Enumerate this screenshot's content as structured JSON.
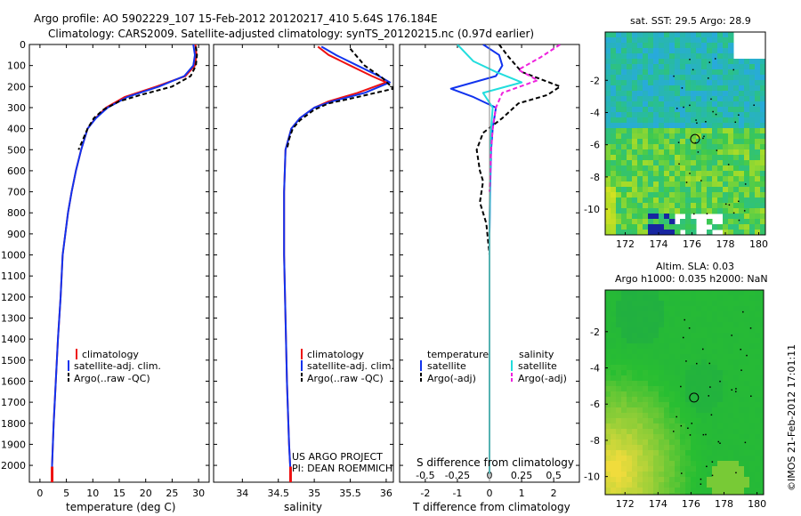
{
  "header": {
    "line1": "Argo profile: AO 5902229_107 15-Feb-2012 20120217_410 5.64S 176.184E",
    "line2": "Climatology: CARS2009. Satellite-adjusted climatology: synTS_20120215.nc (0.97d earlier)"
  },
  "colors": {
    "climatology": "#ee1111",
    "satellite": "#1133ee",
    "argo": "#000000",
    "sal_satellite": "#22dddd",
    "sal_argo": "#ee22dd"
  },
  "chart_data": [
    {
      "type": "line",
      "id": "temperature",
      "xlabel": "temperature (deg C)",
      "ylabel": "",
      "xlim": [
        -2,
        32
      ],
      "ylim": [
        2080,
        0
      ],
      "xticks": [
        0,
        5,
        10,
        15,
        20,
        25,
        30
      ],
      "yticks": [
        0,
        100,
        200,
        300,
        400,
        500,
        600,
        700,
        800,
        900,
        1000,
        1100,
        1200,
        1300,
        1400,
        1500,
        1600,
        1700,
        1800,
        1900,
        2000
      ],
      "legend": [
        "climatology",
        "satellite-adj. clim.",
        "Argo(..raw -QC)"
      ],
      "series": [
        {
          "name": "climatology",
          "color": "#ee1111",
          "dash": "",
          "points": [
            [
              29.4,
              0
            ],
            [
              29.6,
              50
            ],
            [
              29.3,
              100
            ],
            [
              27.5,
              150
            ],
            [
              22,
              200
            ],
            [
              16,
              250
            ],
            [
              12.5,
              300
            ],
            [
              10.5,
              350
            ],
            [
              9,
              400
            ],
            [
              7.8,
              500
            ],
            [
              6.8,
              600
            ],
            [
              6,
              700
            ],
            [
              5.3,
              800
            ],
            [
              4.8,
              900
            ],
            [
              4.3,
              1000
            ],
            [
              3.9,
              1200
            ],
            [
              3.4,
              1400
            ],
            [
              3.0,
              1600
            ],
            [
              2.6,
              1800
            ],
            [
              2.3,
              2000
            ],
            [
              2.3,
              2040
            ]
          ]
        },
        {
          "name": "satellite-adj. clim.",
          "color": "#1133ee",
          "dash": "",
          "points": [
            [
              29.0,
              0
            ],
            [
              29.3,
              50
            ],
            [
              29.0,
              100
            ],
            [
              27.3,
              150
            ],
            [
              22.5,
              200
            ],
            [
              16.5,
              250
            ],
            [
              12.8,
              300
            ],
            [
              10.6,
              350
            ],
            [
              9,
              400
            ],
            [
              7.8,
              500
            ],
            [
              6.8,
              600
            ],
            [
              6,
              700
            ],
            [
              5.3,
              800
            ],
            [
              4.8,
              900
            ],
            [
              4.3,
              1000
            ],
            [
              3.9,
              1200
            ],
            [
              3.4,
              1400
            ],
            [
              3.0,
              1600
            ],
            [
              2.6,
              1800
            ],
            [
              2.3,
              2000
            ],
            [
              2.3,
              2040
            ]
          ]
        },
        {
          "name": "Argo(..raw -QC)",
          "color": "#000000",
          "dash": "5,3",
          "points": [
            [
              29.5,
              10
            ],
            [
              29.7,
              50
            ],
            [
              29.5,
              100
            ],
            [
              28.5,
              150
            ],
            [
              25,
              200
            ],
            [
              19,
              240
            ],
            [
              15,
              270
            ],
            [
              12,
              310
            ],
            [
              10.2,
              350
            ],
            [
              9,
              400
            ],
            [
              8,
              460
            ],
            [
              7.3,
              500
            ]
          ]
        }
      ]
    },
    {
      "type": "line",
      "id": "salinity",
      "xlabel": "salinity",
      "ylabel": "",
      "xlim": [
        33.6,
        36.1
      ],
      "ylim": [
        2080,
        0
      ],
      "xticks": [
        34,
        34.5,
        35,
        35.5,
        36
      ],
      "legend": [
        "climatology",
        "satellite-adj. clim.",
        "Argo(..raw -QC)"
      ],
      "series": [
        {
          "name": "climatology",
          "color": "#ee1111",
          "dash": "",
          "points": [
            [
              35.05,
              10
            ],
            [
              35.2,
              50
            ],
            [
              35.5,
              100
            ],
            [
              35.8,
              150
            ],
            [
              36.0,
              180
            ],
            [
              35.6,
              230
            ],
            [
              35.2,
              270
            ],
            [
              35.0,
              300
            ],
            [
              34.8,
              350
            ],
            [
              34.68,
              400
            ],
            [
              34.6,
              500
            ],
            [
              34.58,
              700
            ],
            [
              34.58,
              1000
            ],
            [
              34.6,
              1300
            ],
            [
              34.62,
              1600
            ],
            [
              34.65,
              1900
            ],
            [
              34.67,
              2040
            ]
          ]
        },
        {
          "name": "satellite-adj. clim.",
          "color": "#1133ee",
          "dash": "",
          "points": [
            [
              35.1,
              10
            ],
            [
              35.3,
              50
            ],
            [
              35.6,
              100
            ],
            [
              35.9,
              150
            ],
            [
              36.05,
              180
            ],
            [
              35.7,
              230
            ],
            [
              35.25,
              270
            ],
            [
              35.0,
              300
            ],
            [
              34.8,
              350
            ],
            [
              34.68,
              400
            ],
            [
              34.6,
              500
            ],
            [
              34.58,
              700
            ],
            [
              34.58,
              1000
            ],
            [
              34.6,
              1300
            ],
            [
              34.62,
              1600
            ],
            [
              34.65,
              1900
            ],
            [
              34.67,
              2040
            ]
          ]
        },
        {
          "name": "Argo(..raw -QC)",
          "color": "#000000",
          "dash": "5,3",
          "points": [
            [
              35.5,
              20
            ],
            [
              35.6,
              60
            ],
            [
              35.7,
              100
            ],
            [
              35.95,
              160
            ],
            [
              36.1,
              210
            ],
            [
              35.6,
              250
            ],
            [
              35.2,
              280
            ],
            [
              35.0,
              310
            ],
            [
              34.8,
              360
            ],
            [
              34.7,
              400
            ],
            [
              34.65,
              450
            ],
            [
              34.62,
              500
            ]
          ]
        }
      ]
    },
    {
      "type": "line",
      "id": "difference",
      "xlabel": "T difference from climatology",
      "xlabel_top": "S difference from climatology",
      "xlim": [
        -2.8,
        2.8
      ],
      "ylim": [
        2080,
        0
      ],
      "xticks": [
        -2,
        -1,
        0,
        1,
        2
      ],
      "xticks_s": [
        -0.5,
        -0.25,
        0,
        0.25,
        0.5
      ],
      "legend_left_title": "temperature",
      "legend_right_title": "salinity",
      "legend": [
        "satellite",
        "Argo(-adj)",
        "satellite",
        "Argo(-adj)"
      ],
      "series": [
        {
          "name": "temperature satellite",
          "color": "#1133ee",
          "dash": "",
          "points": [
            [
              -0.2,
              0
            ],
            [
              0.3,
              50
            ],
            [
              0.4,
              100
            ],
            [
              0.2,
              150
            ],
            [
              -1.2,
              210
            ],
            [
              -0.5,
              250
            ],
            [
              0.2,
              300
            ],
            [
              0.1,
              400
            ],
            [
              0.05,
              500
            ],
            [
              0.02,
              700
            ],
            [
              0,
              900
            ],
            [
              0,
              1200
            ],
            [
              0,
              1600
            ],
            [
              0,
              2040
            ]
          ]
        },
        {
          "name": "temperature Argo(-adj)",
          "color": "#000000",
          "dash": "5,3",
          "points": [
            [
              0.3,
              0
            ],
            [
              0.6,
              60
            ],
            [
              1.0,
              130
            ],
            [
              2.2,
              200
            ],
            [
              1.8,
              240
            ],
            [
              0.9,
              280
            ],
            [
              0.4,
              350
            ],
            [
              -0.2,
              420
            ],
            [
              -0.4,
              500
            ],
            [
              -0.3,
              600
            ],
            [
              -0.2,
              650
            ],
            [
              -0.3,
              750
            ],
            [
              -0.1,
              850
            ],
            [
              0,
              1000
            ]
          ]
        },
        {
          "name": "salinity satellite",
          "color": "#22dddd",
          "dash": "",
          "points": [
            [
              -1.0,
              0
            ],
            [
              -0.5,
              80
            ],
            [
              0.2,
              130
            ],
            [
              1.0,
              180
            ],
            [
              -0.2,
              230
            ],
            [
              0.1,
              300
            ],
            [
              0.05,
              400
            ],
            [
              0.02,
              600
            ],
            [
              0,
              900
            ],
            [
              0,
              2040
            ]
          ]
        },
        {
          "name": "salinity Argo(-adj)",
          "color": "#ee22dd",
          "dash": "5,3",
          "points": [
            [
              2.2,
              0
            ],
            [
              1.6,
              60
            ],
            [
              0.9,
              120
            ],
            [
              1.5,
              170
            ],
            [
              0.4,
              230
            ],
            [
              0.2,
              300
            ],
            [
              0.1,
              400
            ],
            [
              0.05,
              500
            ],
            [
              0,
              700
            ]
          ]
        }
      ]
    },
    {
      "type": "heatmap",
      "id": "sst_map",
      "title": "sat. SST: 29.5 Argo: 28.9",
      "xticks": [
        172,
        174,
        176,
        178,
        180
      ],
      "yticks": [
        -2,
        -4,
        -6,
        -8,
        -10
      ],
      "xlim": [
        170.8,
        180.4
      ],
      "ylim": [
        -11.6,
        1.0
      ],
      "marker": [
        176.184,
        -5.64
      ]
    },
    {
      "type": "heatmap",
      "id": "sla_map",
      "title_line1": "Altim. SLA: 0.03",
      "title_line2": "Argo h1000: 0.035 h2000: NaN",
      "xticks": [
        172,
        174,
        176,
        178,
        180
      ],
      "yticks": [
        -2,
        -4,
        -6,
        -8,
        -10
      ],
      "xlim": [
        170.8,
        180.4
      ],
      "ylim": [
        -11.0,
        0.3
      ],
      "marker": [
        176.184,
        -5.64
      ]
    }
  ],
  "annotations": {
    "project": "US ARGO PROJECT",
    "pi": "PI: DEAN ROEMMICH",
    "stamp": "©IMOS 21-Feb-2012 17:01:11"
  }
}
